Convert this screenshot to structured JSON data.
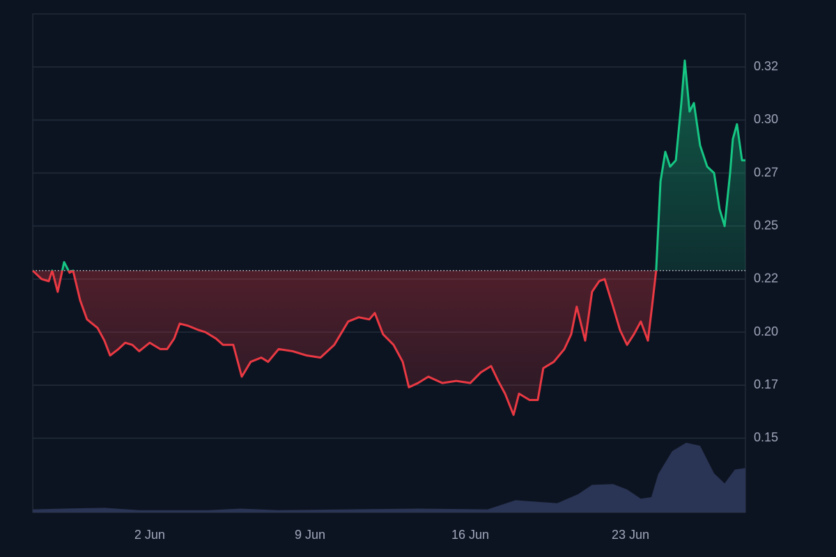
{
  "chart_data": {
    "type": "line",
    "x": [
      -3.11,
      -2.72,
      -2.41,
      -2.26,
      -2.02,
      -1.74,
      -1.5,
      -1.35,
      -1.04,
      -0.74,
      -0.28,
      0.02,
      0.27,
      0.63,
      0.93,
      1.24,
      1.54,
      2,
      2.46,
      2.76,
      3.07,
      3.31,
      3.67,
      4.13,
      4.43,
      4.89,
      5.2,
      5.65,
      6.02,
      6.41,
      6.87,
      7.17,
      7.63,
      8.24,
      8.85,
      9.46,
      10.06,
      10.67,
      11.13,
      11.59,
      11.83,
      12.19,
      12.65,
      13.05,
      13.32,
      13.72,
      14.17,
      14.78,
      15.39,
      16,
      16.46,
      16.91,
      17.22,
      17.52,
      17.89,
      18.13,
      18.59,
      18.95,
      19.19,
      19.65,
      20.11,
      20.41,
      20.65,
      21.02,
      21.32,
      21.63,
      21.87,
      22.24,
      22.54,
      22.85,
      23.15,
      23.45,
      23.76,
      23.94,
      24.12,
      24.31,
      24.52,
      24.73,
      24.98,
      25.22,
      25.37,
      25.58,
      25.77,
      26.04,
      26.35,
      26.65,
      26.89,
      27.11,
      27.35,
      27.47,
      27.65,
      27.87,
      28.02
    ],
    "values": [
      0.229,
      0.225,
      0.224,
      0.229,
      0.219,
      0.233,
      0.228,
      0.229,
      0.215,
      0.206,
      0.202,
      0.196,
      0.189,
      0.192,
      0.195,
      0.194,
      0.191,
      0.195,
      0.192,
      0.192,
      0.197,
      0.204,
      0.203,
      0.201,
      0.2,
      0.197,
      0.194,
      0.194,
      0.179,
      0.186,
      0.188,
      0.186,
      0.192,
      0.191,
      0.189,
      0.188,
      0.194,
      0.205,
      0.207,
      0.206,
      0.209,
      0.199,
      0.194,
      0.186,
      0.174,
      0.176,
      0.179,
      0.176,
      0.177,
      0.176,
      0.181,
      0.184,
      0.177,
      0.171,
      0.161,
      0.171,
      0.168,
      0.168,
      0.183,
      0.186,
      0.192,
      0.199,
      0.212,
      0.196,
      0.219,
      0.224,
      0.225,
      0.212,
      0.201,
      0.194,
      0.199,
      0.205,
      0.196,
      0.212,
      0.229,
      0.271,
      0.285,
      0.278,
      0.281,
      0.308,
      0.328,
      0.304,
      0.308,
      0.288,
      0.278,
      0.275,
      0.258,
      0.25,
      0.275,
      0.291,
      0.298,
      0.281,
      0.281
    ],
    "baseline": 0.229,
    "up_color": "#16c784",
    "down_color": "#ea3943",
    "xlim": [
      -3.11,
      28.02
    ],
    "ylim": [
      0.115,
      0.35
    ],
    "xticks": [
      {
        "value": 2,
        "label": "2 Jun"
      },
      {
        "value": 9,
        "label": "9 Jun"
      },
      {
        "value": 16,
        "label": "16 Jun"
      },
      {
        "value": 23,
        "label": "23 Jun"
      }
    ],
    "yticks": [
      0.15,
      {
        "value": 0.175,
        "label": "0.17"
      },
      {
        "value": 0.2,
        "label": "0.20"
      },
      {
        "value": 0.225,
        "label": "0.22"
      },
      0.25,
      {
        "value": 0.275,
        "label": "0.27"
      },
      {
        "value": 0.3,
        "label": "0.30"
      },
      {
        "value": 0.325,
        "label": "0.32"
      }
    ],
    "grid": true,
    "volume": {
      "color": "#2a3454",
      "y2lim": [
        0,
        100
      ],
      "x": [
        -3.11,
        -1.8,
        0.02,
        1.54,
        4.59,
        5.96,
        7.63,
        10.67,
        13.72,
        16.76,
        17.37,
        17.98,
        18.89,
        19.8,
        20.72,
        21.32,
        22.24,
        22.85,
        23.45,
        23.91,
        24.21,
        24.82,
        25.43,
        26.04,
        26.65,
        27.11,
        27.56,
        28.02
      ],
      "values": [
        4,
        5,
        6,
        3,
        3,
        5,
        3,
        4,
        5,
        4,
        10,
        16,
        14,
        12,
        24,
        36,
        37,
        30,
        18,
        20,
        50,
        80,
        91,
        87,
        51,
        38,
        56,
        58
      ]
    }
  }
}
